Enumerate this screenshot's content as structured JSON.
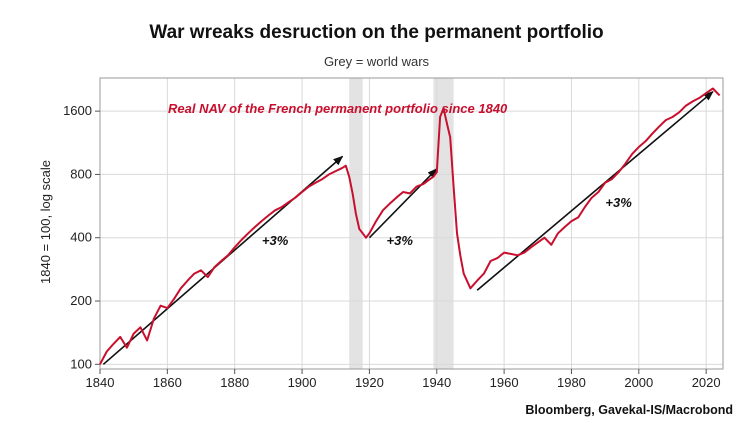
{
  "chart_data": {
    "type": "line",
    "title": "War wreaks desruction on the permanent portfolio",
    "subtitle": "Grey = world wars",
    "ylabel": "1840 = 100, log scale",
    "source": "Bloomberg, Gavekal-IS/Macrobond",
    "series_label": "Real NAV of the French permanent portfolio since 1840",
    "y_scale": "log",
    "xlim": [
      1840,
      2025
    ],
    "ylim": [
      95,
      2300
    ],
    "x_ticks": [
      "1840",
      "1860",
      "1880",
      "1900",
      "1920",
      "1940",
      "1960",
      "1980",
      "2000",
      "2020"
    ],
    "y_ticks": [
      "100",
      "200",
      "400",
      "800",
      "1600"
    ],
    "grid": true,
    "shaded_periods": [
      [
        1914,
        1918
      ],
      [
        1939,
        1945
      ]
    ],
    "colors": {
      "series": "#c8102e",
      "shade": "#e3e3e3",
      "grid": "#d9d9d9",
      "trend": "#111111"
    },
    "series": [
      {
        "x": [
          1840,
          1842,
          1844,
          1846,
          1848,
          1850,
          1852,
          1854,
          1856,
          1858,
          1860,
          1862,
          1864,
          1866,
          1868,
          1870,
          1872,
          1874,
          1876,
          1878,
          1880,
          1882,
          1884,
          1886,
          1888,
          1890,
          1892,
          1894,
          1896,
          1898,
          1900,
          1902,
          1904,
          1906,
          1908,
          1910,
          1912,
          1913,
          1914,
          1915,
          1916,
          1917,
          1918,
          1919,
          1920,
          1922,
          1924,
          1926,
          1928,
          1930,
          1932,
          1934,
          1936,
          1938,
          1939,
          1940,
          1941,
          1942,
          1943,
          1944,
          1945,
          1946,
          1947,
          1948,
          1950,
          1952,
          1954,
          1956,
          1958,
          1960,
          1962,
          1964,
          1966,
          1968,
          1970,
          1972,
          1974,
          1976,
          1978,
          1980,
          1982,
          1984,
          1986,
          1988,
          1990,
          1992,
          1994,
          1996,
          1998,
          2000,
          2002,
          2004,
          2006,
          2008,
          2010,
          2012,
          2014,
          2016,
          2018,
          2020,
          2022,
          2024
        ],
        "values": [
          100,
          115,
          125,
          135,
          120,
          140,
          150,
          130,
          165,
          190,
          185,
          205,
          230,
          250,
          270,
          280,
          260,
          290,
          310,
          330,
          360,
          390,
          420,
          450,
          480,
          510,
          540,
          560,
          590,
          620,
          660,
          700,
          730,
          760,
          800,
          830,
          860,
          880,
          780,
          650,
          520,
          440,
          420,
          400,
          420,
          480,
          540,
          580,
          620,
          660,
          650,
          700,
          720,
          760,
          780,
          820,
          1500,
          1650,
          1400,
          1200,
          700,
          420,
          330,
          270,
          230,
          250,
          270,
          310,
          320,
          340,
          335,
          330,
          340,
          360,
          380,
          400,
          370,
          420,
          450,
          480,
          500,
          560,
          620,
          660,
          730,
          760,
          820,
          900,
          1000,
          1080,
          1150,
          1250,
          1350,
          1450,
          1500,
          1580,
          1700,
          1780,
          1850,
          1950,
          2050,
          1900
        ]
      }
    ],
    "trend_arrows": [
      {
        "from": [
          1841,
          100
        ],
        "to": [
          1912,
          975
        ]
      },
      {
        "from": [
          1920,
          400
        ],
        "to": [
          1940,
          850
        ]
      },
      {
        "from": [
          1952,
          225
        ],
        "to": [
          2022,
          1980
        ]
      }
    ],
    "annotations": [
      {
        "text": "+3%",
        "x": 1892,
        "y": 370
      },
      {
        "text": "+3%",
        "x": 1929,
        "y": 370
      },
      {
        "text": "+3%",
        "x": 1994,
        "y": 560
      }
    ]
  }
}
